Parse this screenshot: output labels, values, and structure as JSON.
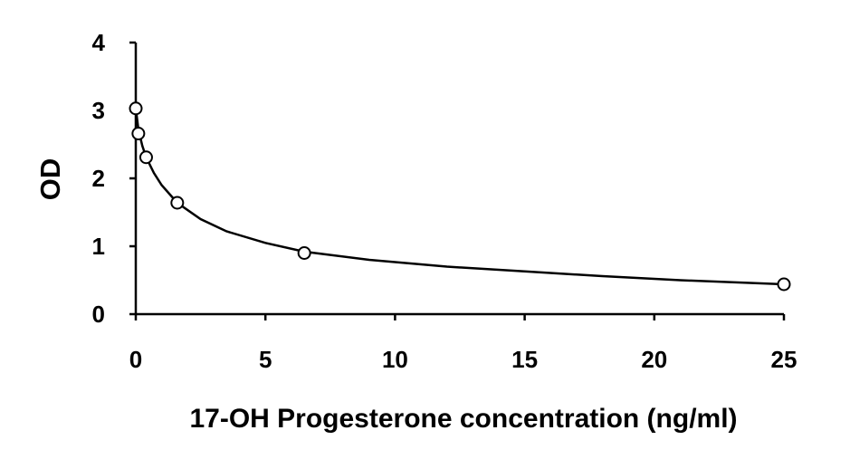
{
  "chart_data": {
    "type": "scatter",
    "title": "",
    "xlabel": "17-OH Progesterone concentration (ng/ml)",
    "ylabel": "OD",
    "xlim": [
      0,
      25
    ],
    "ylim": [
      0,
      4
    ],
    "xticks": [
      0,
      5,
      10,
      15,
      20,
      25
    ],
    "yticks": [
      0,
      1,
      2,
      3,
      4
    ],
    "grid": false,
    "legend": "none",
    "series": [
      {
        "points": [
          {
            "x": 0,
            "y": 3.03
          },
          {
            "x": 0.1,
            "y": 2.66
          },
          {
            "x": 0.4,
            "y": 2.31
          },
          {
            "x": 1.6,
            "y": 1.64
          },
          {
            "x": 6.5,
            "y": 0.9
          },
          {
            "x": 25,
            "y": 0.44
          }
        ]
      }
    ],
    "fit_curve": {
      "points": [
        {
          "x": 0,
          "y": 3.03
        },
        {
          "x": 0.1,
          "y": 2.72
        },
        {
          "x": 0.25,
          "y": 2.48
        },
        {
          "x": 0.4,
          "y": 2.31
        },
        {
          "x": 0.7,
          "y": 2.08
        },
        {
          "x": 1.0,
          "y": 1.9
        },
        {
          "x": 1.6,
          "y": 1.64
        },
        {
          "x": 2.5,
          "y": 1.4
        },
        {
          "x": 3.5,
          "y": 1.22
        },
        {
          "x": 5.0,
          "y": 1.05
        },
        {
          "x": 6.5,
          "y": 0.92
        },
        {
          "x": 9.0,
          "y": 0.8
        },
        {
          "x": 12.0,
          "y": 0.7
        },
        {
          "x": 15.0,
          "y": 0.63
        },
        {
          "x": 18.0,
          "y": 0.56
        },
        {
          "x": 21.0,
          "y": 0.5
        },
        {
          "x": 25.0,
          "y": 0.44
        }
      ]
    },
    "colors": {
      "axis": "#000000",
      "marker_fill": "#ffffff",
      "line": "#000000"
    }
  }
}
